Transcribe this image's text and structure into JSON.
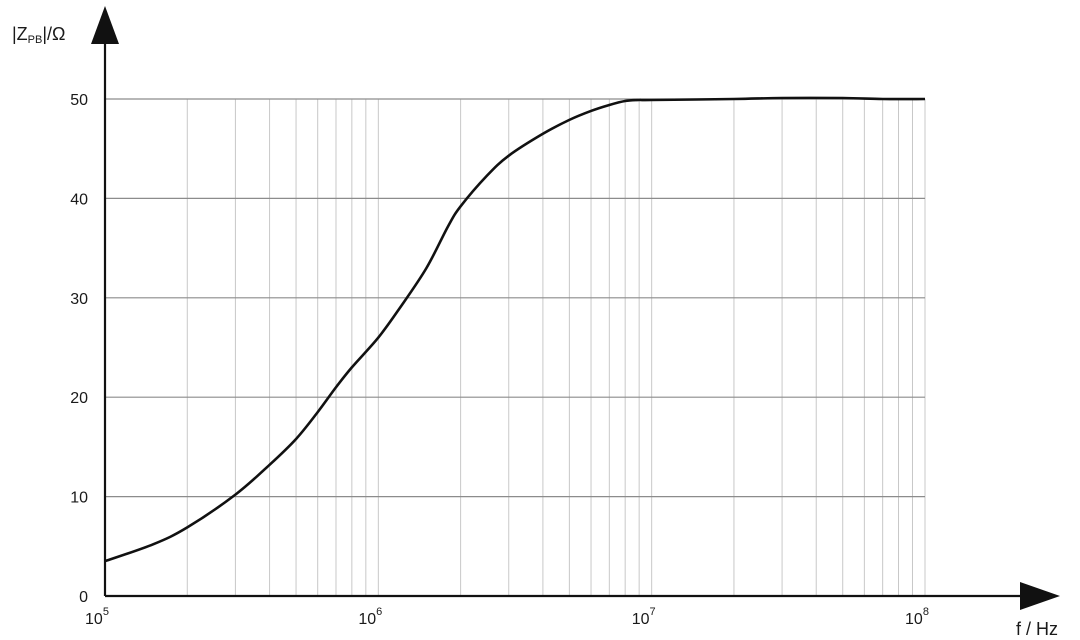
{
  "chart_data": {
    "type": "line",
    "title": "",
    "xlabel": "f / Hz",
    "ylabel_prefix": "|Z",
    "ylabel_subscript": "PB",
    "ylabel_suffix": "|/Ω",
    "x_scale": "log",
    "xlim": [
      100000,
      100000000
    ],
    "ylim": [
      0,
      50
    ],
    "grid": true,
    "x_tick_labels": [
      {
        "value": 100000,
        "base": "10",
        "exp": "5"
      },
      {
        "value": 1000000,
        "base": "10",
        "exp": "6"
      },
      {
        "value": 10000000,
        "base": "10",
        "exp": "7"
      },
      {
        "value": 100000000,
        "base": "10",
        "exp": "8"
      }
    ],
    "y_ticks": [
      0,
      10,
      20,
      30,
      40,
      50
    ],
    "series": [
      {
        "x": [
          100000,
          150000,
          200000,
          300000,
          400000,
          500000,
          600000,
          700000,
          800000,
          1000000,
          1200000,
          1500000,
          1800000,
          2000000,
          2500000,
          3000000,
          4000000,
          5000000,
          6000000,
          7000000,
          8000000,
          9000000,
          10000000,
          20000000,
          30000000,
          50000000,
          70000000,
          100000000
        ],
        "y": [
          3.5,
          5.2,
          6.9,
          10.2,
          13.2,
          15.8,
          18.5,
          21.0,
          23.0,
          26.0,
          29.0,
          33.0,
          37.2,
          39.2,
          42.3,
          44.3,
          46.5,
          47.9,
          48.8,
          49.4,
          49.8,
          49.9,
          49.9,
          50.0,
          50.1,
          50.1,
          50.0,
          50.0
        ]
      }
    ]
  }
}
